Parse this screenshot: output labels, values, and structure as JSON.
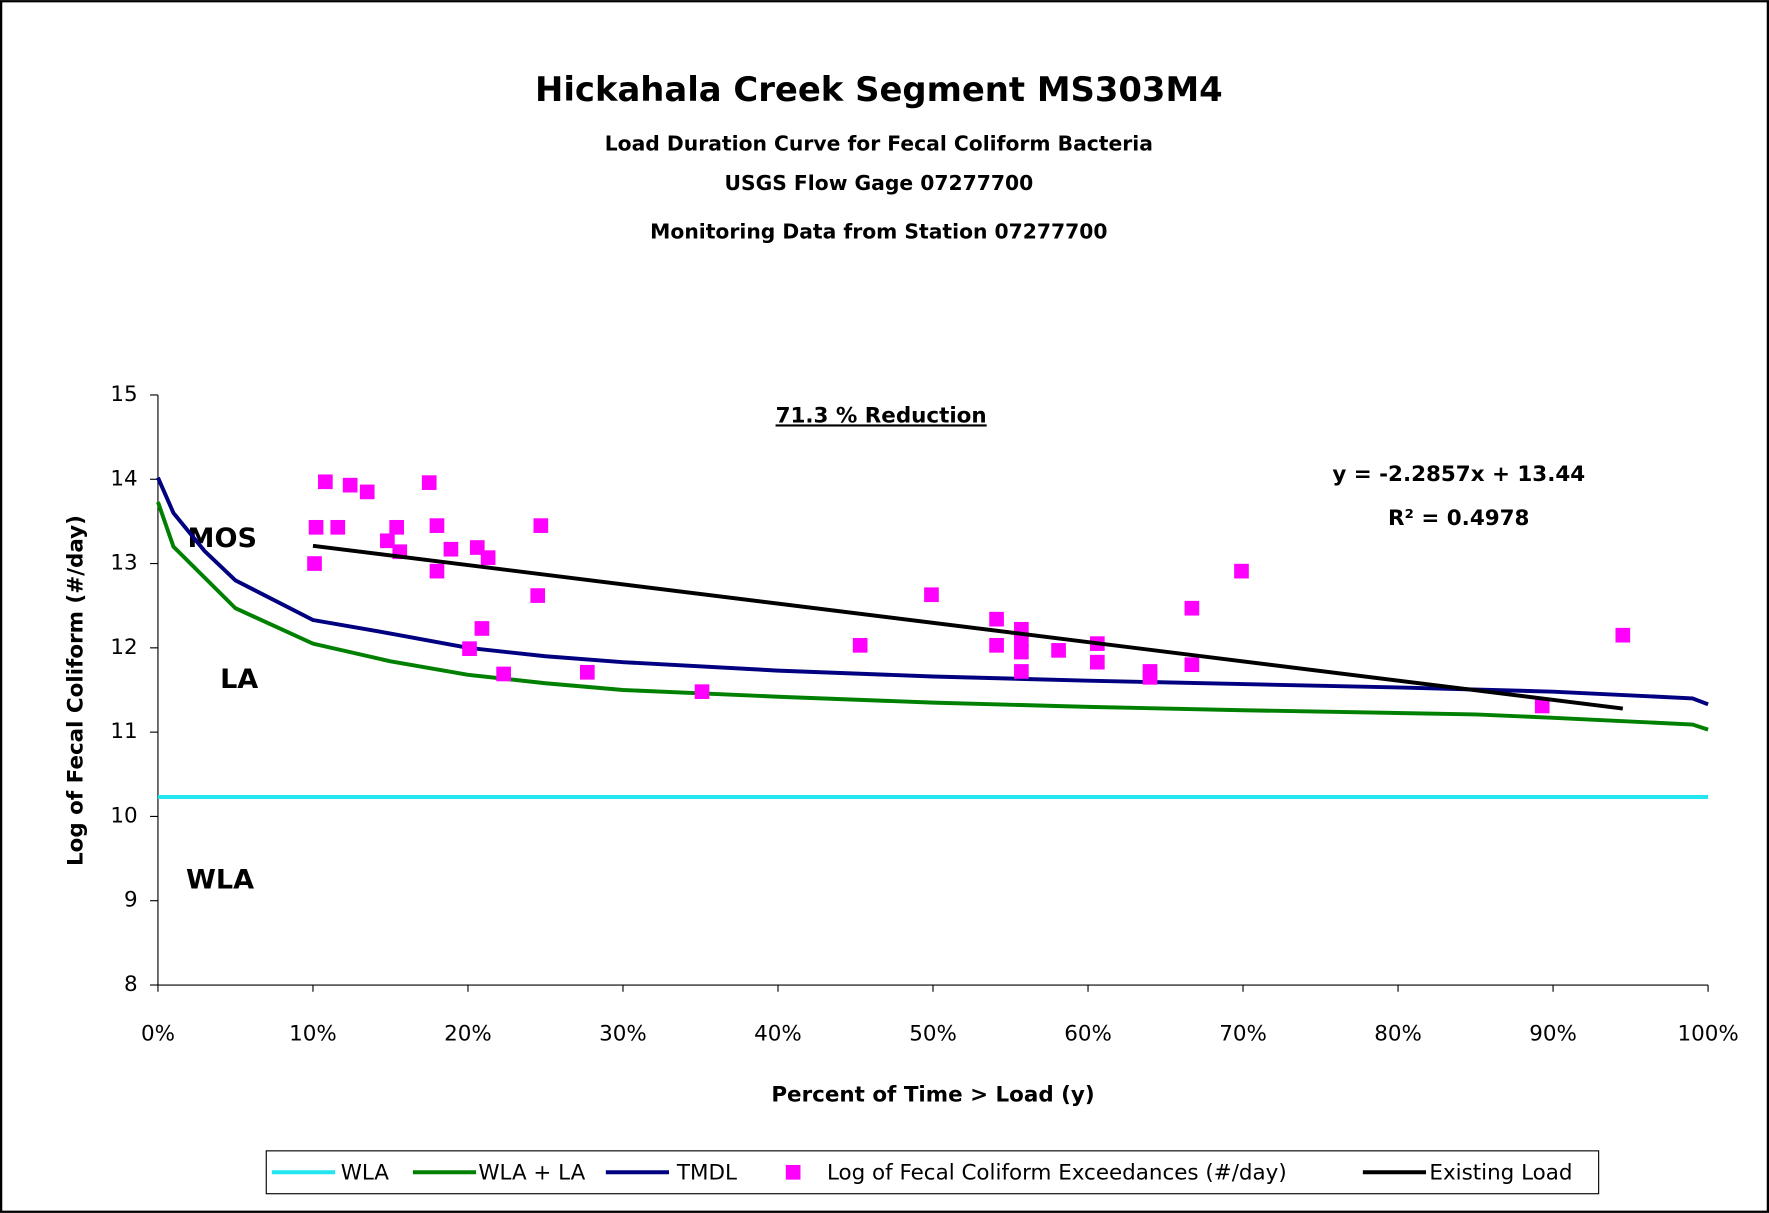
{
  "chart_data": {
    "type": "line",
    "title": "Hickahala Creek Segment MS303M4",
    "subtitles": [
      "Load Duration Curve for Fecal Coliform Bacteria",
      "USGS Flow Gage 07277700",
      "Monitoring Data from Station 07277700"
    ],
    "x_label": "Percent of Time > Load (y)",
    "y_label": "Log of Fecal Coliform (#/day)",
    "xlim": [
      0,
      100
    ],
    "xticks": [
      {
        "value": 0,
        "label": "0%"
      },
      {
        "value": 10,
        "label": "10%"
      },
      {
        "value": 20,
        "label": "20%"
      },
      {
        "value": 30,
        "label": "30%"
      },
      {
        "value": 40,
        "label": "40%"
      },
      {
        "value": 50,
        "label": "50%"
      },
      {
        "value": 60,
        "label": "60%"
      },
      {
        "value": 70,
        "label": "70%"
      },
      {
        "value": 80,
        "label": "80%"
      },
      {
        "value": 90,
        "label": "90%"
      },
      {
        "value": 100,
        "label": "100%"
      }
    ],
    "ylim": [
      8,
      15
    ],
    "yticks": [
      8,
      9,
      10,
      11,
      12,
      13,
      14,
      15
    ],
    "grid": false,
    "legend": "bottom",
    "annotations": {
      "reduction": "71.3 % Reduction",
      "equation": "y = -2.2857x + 13.44",
      "r_squared": "R² = 0.4978",
      "mos": "MOS",
      "la": "LA",
      "wla": "WLA"
    },
    "series": [
      {
        "name": "WLA",
        "type": "line",
        "color": "#22e5f0",
        "x": [
          0,
          100
        ],
        "values": [
          10.23,
          10.23
        ]
      },
      {
        "name": "WLA + LA",
        "type": "line",
        "color": "#008000",
        "x": [
          0,
          1,
          5,
          10,
          15,
          20,
          25,
          30,
          40,
          50,
          60,
          70,
          85,
          90,
          99,
          100
        ],
        "values": [
          13.73,
          13.2,
          12.47,
          12.05,
          11.84,
          11.68,
          11.58,
          11.5,
          11.42,
          11.35,
          11.3,
          11.26,
          11.21,
          11.17,
          11.09,
          11.03
        ]
      },
      {
        "name": "TMDL",
        "type": "line",
        "color": "#000080",
        "x": [
          0,
          1,
          3,
          5,
          10,
          15,
          20,
          25,
          30,
          40,
          50,
          60,
          70,
          80,
          90,
          99,
          100
        ],
        "values": [
          14.02,
          13.6,
          13.15,
          12.8,
          12.33,
          12.17,
          12.0,
          11.9,
          11.83,
          11.73,
          11.66,
          11.61,
          11.57,
          11.53,
          11.48,
          11.4,
          11.33
        ]
      },
      {
        "name": "Log of Fecal Coliform Exceedances (#/day)",
        "type": "scatter",
        "color": "#ff00ff",
        "x": [
          10.1,
          10.2,
          10.8,
          11.6,
          12.4,
          13.5,
          14.8,
          15.4,
          15.6,
          17.5,
          18.0,
          18.0,
          18.9,
          20.6,
          21.3,
          20.9,
          20.1,
          22.3,
          24.5,
          24.7,
          27.7,
          35.1,
          45.3,
          49.9,
          54.1,
          54.1,
          55.7,
          55.7,
          55.7,
          55.7,
          58.1,
          60.6,
          60.6,
          64.0,
          64.0,
          66.7,
          66.7,
          69.9,
          89.3,
          94.5
        ],
        "values": [
          13.0,
          13.43,
          13.97,
          13.43,
          13.93,
          13.85,
          13.27,
          13.43,
          13.14,
          13.96,
          13.45,
          12.91,
          13.17,
          13.19,
          13.07,
          12.23,
          11.99,
          11.69,
          12.62,
          13.45,
          11.71,
          11.48,
          12.03,
          12.63,
          12.34,
          12.03,
          12.22,
          12.1,
          11.95,
          11.72,
          11.97,
          12.05,
          11.83,
          11.72,
          11.65,
          12.47,
          11.8,
          12.91,
          11.31,
          12.15
        ]
      },
      {
        "name": "Existing Load",
        "type": "line",
        "color": "#000000",
        "x": [
          10,
          94.5
        ],
        "values": [
          13.21,
          11.28
        ]
      }
    ]
  }
}
